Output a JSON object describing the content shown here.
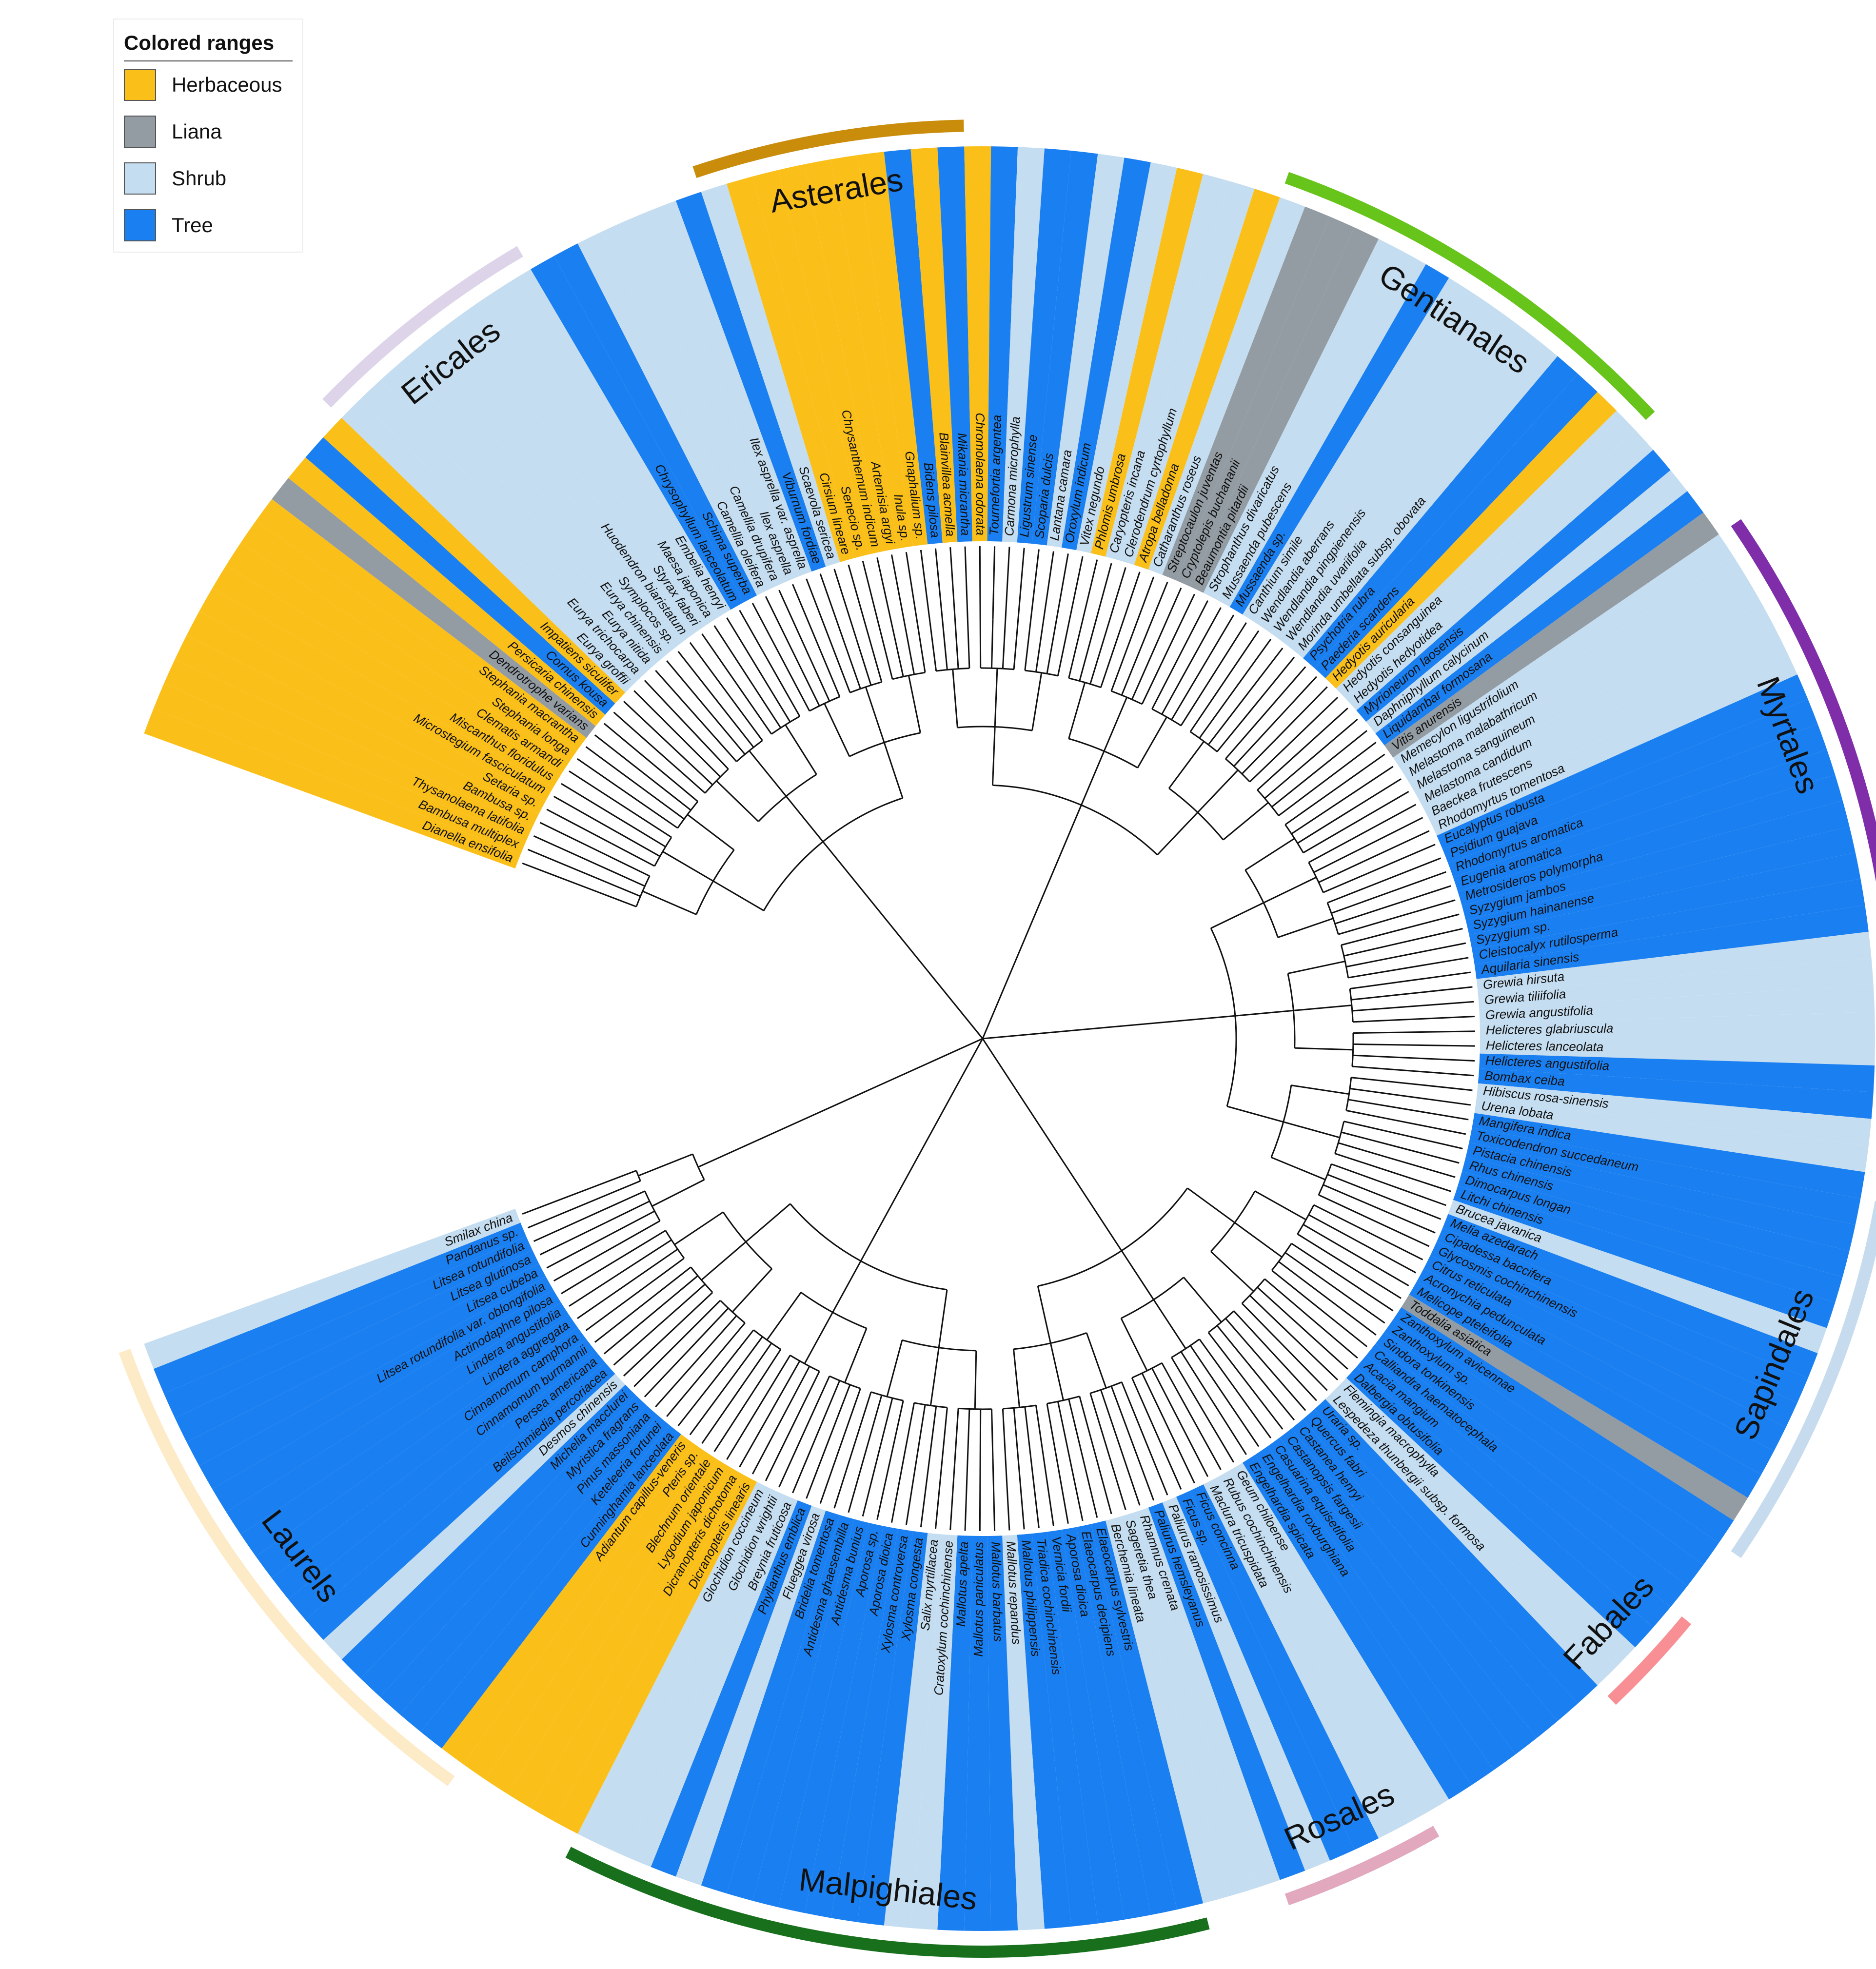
{
  "legend": {
    "title": "Colored ranges",
    "items": [
      {
        "key": "H",
        "label": "Herbaceous",
        "color": "#fbbf1a"
      },
      {
        "key": "L",
        "label": "Liana",
        "color": "#939ba3"
      },
      {
        "key": "S",
        "label": "Shrub",
        "color": "#c5ddf0"
      },
      {
        "key": "T",
        "label": "Tree",
        "color": "#1a7ff0"
      }
    ]
  },
  "clades": [
    {
      "name": "Laurels",
      "color": "#fdeac6",
      "from": "Adiantum capillus-veneris",
      "to": "Smilax china"
    },
    {
      "name": "Ericales",
      "color": "#ddd4ea",
      "from": "Eurya groffii",
      "to": "Embelia henryi"
    },
    {
      "name": "Asterales",
      "color": "#c98c0b",
      "from": "Scaevola sericea",
      "to": "Mikania micrantha"
    },
    {
      "name": "Gentianales",
      "color": "#66c41a",
      "from": "Catharanthus roseus",
      "to": "Hedyotis consanguinea"
    },
    {
      "name": "Myrtales",
      "color": "#7f2da8",
      "from": "Memecylon ligustrifolium",
      "to": "Aquilaria sinensis"
    },
    {
      "name": "Sapindales",
      "color": "#c6dcee",
      "from": "Zanthoxylum avicennae",
      "to": "Toxicodendron succedaneum"
    },
    {
      "name": "Fabales",
      "color": "#f78f94",
      "from": "Lespedeza thunbergii subsp. formosa",
      "to": "Acacia mangium"
    },
    {
      "name": "Rosales",
      "color": "#e2a8bd",
      "from": "Paliurus hemsleyanus",
      "to": "Rubus cochinchinensis"
    },
    {
      "name": "Malpighiales",
      "color": "#18701d",
      "from": "Glochidion coccineum",
      "to": "Elaeocarpus sylvestris"
    }
  ],
  "leaves": [
    {
      "name": "Dianella ensifolia",
      "type": "H"
    },
    {
      "name": "Bambusa multiplex",
      "type": "H"
    },
    {
      "name": "Thysanolaena latifolia",
      "type": "H"
    },
    {
      "name": "Bambusa sp.",
      "type": "H"
    },
    {
      "name": "Setaria sp.",
      "type": "H"
    },
    {
      "name": "Microstegium fasciculatum",
      "type": "H"
    },
    {
      "name": "Miscanthus floridulus",
      "type": "H"
    },
    {
      "name": "Clematis armandi",
      "type": "H"
    },
    {
      "name": "Stephania longa",
      "type": "H"
    },
    {
      "name": "Stephania macrantha",
      "type": "H"
    },
    {
      "name": "Dendrotrophe varians",
      "type": "L"
    },
    {
      "name": "Persicaria chinensis",
      "type": "H"
    },
    {
      "name": "Cornus kousa",
      "type": "T"
    },
    {
      "name": "Impatiens siculifer",
      "type": "H"
    },
    {
      "name": "Eurya groffii",
      "type": "S"
    },
    {
      "name": "Eurya trichocarpa",
      "type": "S"
    },
    {
      "name": "Eurya nitida",
      "type": "S"
    },
    {
      "name": "Eurya chinensis",
      "type": "S"
    },
    {
      "name": "Symplocos sp.",
      "type": "S"
    },
    {
      "name": "Huodendron biaristatum",
      "type": "S"
    },
    {
      "name": "Styrax faberi",
      "type": "S"
    },
    {
      "name": "Maesa japonica",
      "type": "S"
    },
    {
      "name": "Embelia henryi",
      "type": "S"
    },
    {
      "name": "Chrysophyllum lanceolatum",
      "type": "T"
    },
    {
      "name": "Schima superba",
      "type": "T"
    },
    {
      "name": "Camellia oleifera",
      "type": "S"
    },
    {
      "name": "Camellia drupifera",
      "type": "S"
    },
    {
      "name": "Ilex asprella",
      "type": "S"
    },
    {
      "name": "Ilex asprella var. asprella",
      "type": "S"
    },
    {
      "name": "Viburnum fordiae",
      "type": "T"
    },
    {
      "name": "Scaevola sericea",
      "type": "S"
    },
    {
      "name": "Cirsium lineare",
      "type": "H"
    },
    {
      "name": "Senecio sp.",
      "type": "H"
    },
    {
      "name": "Chrysanthemum indicum",
      "type": "H"
    },
    {
      "name": "Artemisia argyi",
      "type": "H"
    },
    {
      "name": "Inula sp.",
      "type": "H"
    },
    {
      "name": "Gnaphalium sp.",
      "type": "H"
    },
    {
      "name": "Bidens pilosa",
      "type": "T"
    },
    {
      "name": "Blainvillea acmella",
      "type": "H"
    },
    {
      "name": "Mikania micrantha",
      "type": "T"
    },
    {
      "name": "Chromolaena odorata",
      "type": "H"
    },
    {
      "name": "Tournefortia argentea",
      "type": "T"
    },
    {
      "name": "Carmona microphylla",
      "type": "S"
    },
    {
      "name": "Ligustrum sinense",
      "type": "T"
    },
    {
      "name": "Scoparia dulcis",
      "type": "T"
    },
    {
      "name": "Lantana camara",
      "type": "S"
    },
    {
      "name": "Oroxylum indicum",
      "type": "T"
    },
    {
      "name": "Vitex negundo",
      "type": "S"
    },
    {
      "name": "Phlomis umbrosa",
      "type": "H"
    },
    {
      "name": "Caryopteris incana",
      "type": "S"
    },
    {
      "name": "Clerodendrum cyrtophyllum",
      "type": "S"
    },
    {
      "name": "Atropa belladonna",
      "type": "H"
    },
    {
      "name": "Catharanthus roseus",
      "type": "S"
    },
    {
      "name": "Streptocaulon juventas",
      "type": "L"
    },
    {
      "name": "Cryptolepis buchananii",
      "type": "L"
    },
    {
      "name": "Beaumontia pitardii",
      "type": "L"
    },
    {
      "name": "Strophanthus divaricatus",
      "type": "S"
    },
    {
      "name": "Mussaenda pubescens",
      "type": "S"
    },
    {
      "name": "Mussaenda sp.",
      "type": "T"
    },
    {
      "name": "Canthium simile",
      "type": "S"
    },
    {
      "name": "Wendlandia aberrans",
      "type": "S"
    },
    {
      "name": "Wendlandia pingpienensis",
      "type": "S"
    },
    {
      "name": "Wendlandia uvariifolia",
      "type": "S"
    },
    {
      "name": "Morinda umbellata subsp. obovata",
      "type": "S"
    },
    {
      "name": "Psychotria rubra",
      "type": "T"
    },
    {
      "name": "Paederia scandens",
      "type": "T"
    },
    {
      "name": "Hedyotis auricularia",
      "type": "H"
    },
    {
      "name": "Hedyotis consanguinea",
      "type": "S"
    },
    {
      "name": "Hedyotis hedyotidea",
      "type": "S"
    },
    {
      "name": "Myrioneuron laosensis",
      "type": "T"
    },
    {
      "name": "Daphniphyllum calycinum",
      "type": "S"
    },
    {
      "name": "Liquidambar formosana",
      "type": "T"
    },
    {
      "name": "Vitis anurensis",
      "type": "L"
    },
    {
      "name": "Memecylon ligustrifolium",
      "type": "S"
    },
    {
      "name": "Melastoma malabathricum",
      "type": "S"
    },
    {
      "name": "Melastoma sanguineum",
      "type": "S"
    },
    {
      "name": "Melastoma candidum",
      "type": "S"
    },
    {
      "name": "Baeckea frutescens",
      "type": "S"
    },
    {
      "name": "Rhodomyrtus tomentosa",
      "type": "S"
    },
    {
      "name": "Eucalyptus robusta",
      "type": "T"
    },
    {
      "name": "Psidium guajava",
      "type": "T"
    },
    {
      "name": "Rhodomyrtus aromatica",
      "type": "T"
    },
    {
      "name": "Eugenia aromatica",
      "type": "T"
    },
    {
      "name": "Metrosideros polymorpha",
      "type": "T"
    },
    {
      "name": "Syzygium jambos",
      "type": "T"
    },
    {
      "name": "Syzygium hainanense",
      "type": "T"
    },
    {
      "name": "Syzygium sp.",
      "type": "T"
    },
    {
      "name": "Cleistocalyx rutilosperma",
      "type": "T"
    },
    {
      "name": "Aquilaria sinensis",
      "type": "T"
    },
    {
      "name": "Grewia hirsuta",
      "type": "S"
    },
    {
      "name": "Grewia tiliifolia",
      "type": "S"
    },
    {
      "name": "Grewia angustifolia",
      "type": "S"
    },
    {
      "name": "Helicteres glabriuscula",
      "type": "S"
    },
    {
      "name": "Helicteres lanceolata",
      "type": "S"
    },
    {
      "name": "Helicteres angustifolia",
      "type": "T"
    },
    {
      "name": "Bombax ceiba",
      "type": "T"
    },
    {
      "name": "Hibiscus rosa-sinensis",
      "type": "S"
    },
    {
      "name": "Urena lobata",
      "type": "S"
    },
    {
      "name": "Mangifera indica",
      "type": "T"
    },
    {
      "name": "Toxicodendron succedaneum",
      "type": "T"
    },
    {
      "name": "Pistacia chinensis",
      "type": "T"
    },
    {
      "name": "Rhus chinensis",
      "type": "T"
    },
    {
      "name": "Dimocarpus longan",
      "type": "T"
    },
    {
      "name": "Litchi chinensis",
      "type": "T"
    },
    {
      "name": "Brucea javanica",
      "type": "S"
    },
    {
      "name": "Melia azedarach",
      "type": "T"
    },
    {
      "name": "Cipadessa baccifera",
      "type": "T"
    },
    {
      "name": "Glycosmis cochinchinensis",
      "type": "T"
    },
    {
      "name": "Citrus reticulata",
      "type": "T"
    },
    {
      "name": "Acronychia pedunculata",
      "type": "T"
    },
    {
      "name": "Melicope pteleifolia",
      "type": "T"
    },
    {
      "name": "Toddalia asiatica",
      "type": "L"
    },
    {
      "name": "Zanthoxylum avicennae",
      "type": "T"
    },
    {
      "name": "Zanthoxylum sp.",
      "type": "T"
    },
    {
      "name": "Sindora tonkinensis",
      "type": "T"
    },
    {
      "name": "Calliandra haematocephala",
      "type": "T"
    },
    {
      "name": "Acacia mangium",
      "type": "T"
    },
    {
      "name": "Dalbergia obtusifolia",
      "type": "T"
    },
    {
      "name": "Flemingia macrophylla",
      "type": "S"
    },
    {
      "name": "Lespedeza thunbergii subsp. formosa",
      "type": "S"
    },
    {
      "name": "Uraria sp.",
      "type": "T"
    },
    {
      "name": "Quercus fabri",
      "type": "T"
    },
    {
      "name": "Castanea henryi",
      "type": "T"
    },
    {
      "name": "Castanopsis fargesii",
      "type": "T"
    },
    {
      "name": "Casuarina equisetifolia",
      "type": "T"
    },
    {
      "name": "Engelhardia roxburghiana",
      "type": "T"
    },
    {
      "name": "Engelhardia spicata",
      "type": "T"
    },
    {
      "name": "Geum chiloense",
      "type": "S"
    },
    {
      "name": "Rubus cochinchinensis",
      "type": "S"
    },
    {
      "name": "Maclura tricuspidata",
      "type": "S"
    },
    {
      "name": "Ficus concinna",
      "type": "T"
    },
    {
      "name": "Ficus sp.",
      "type": "T"
    },
    {
      "name": "Paliurus ramosissimus",
      "type": "S"
    },
    {
      "name": "Paliurus hemsleyanus",
      "type": "T"
    },
    {
      "name": "Rhamnus crenata",
      "type": "S"
    },
    {
      "name": "Sageretia thea",
      "type": "S"
    },
    {
      "name": "Berchemia lineata",
      "type": "S"
    },
    {
      "name": "Elaeocarpus sylvestris",
      "type": "T"
    },
    {
      "name": "Elaeocarpus decipiens",
      "type": "T"
    },
    {
      "name": "Aporosa dioica",
      "type": "T"
    },
    {
      "name": "Vernicia fordii",
      "type": "T"
    },
    {
      "name": "Triadica cochinchinensis",
      "type": "T"
    },
    {
      "name": "Mallotus philippensis",
      "type": "T"
    },
    {
      "name": "Mallotus repandus",
      "type": "S"
    },
    {
      "name": "Mallotus barbatus",
      "type": "T"
    },
    {
      "name": "Mallotus paniculatus",
      "type": "T"
    },
    {
      "name": "Mallotus apelta",
      "type": "T"
    },
    {
      "name": "Cratoxylum cochinchinense",
      "type": "S"
    },
    {
      "name": "Salix myrtillacea",
      "type": "S"
    },
    {
      "name": "Xylosma congesta",
      "type": "T"
    },
    {
      "name": "Xylosma controversa",
      "type": "T"
    },
    {
      "name": "Aporosa dioica",
      "type": "T"
    },
    {
      "name": "Aporosa sp.",
      "type": "T"
    },
    {
      "name": "Antidesma bunius",
      "type": "T"
    },
    {
      "name": "Antidesma ghaesembilla",
      "type": "T"
    },
    {
      "name": "Bridelia tomentosa",
      "type": "T"
    },
    {
      "name": "Flueggea virosa",
      "type": "S"
    },
    {
      "name": "Phyllanthus emblica",
      "type": "T"
    },
    {
      "name": "Breynia fruticosa",
      "type": "S"
    },
    {
      "name": "Glochidion wrightii",
      "type": "S"
    },
    {
      "name": "Glochidion coccineum",
      "type": "S"
    },
    {
      "name": "Dicranopteris linearis",
      "type": "H"
    },
    {
      "name": "Dicranopteris dichotoma",
      "type": "H"
    },
    {
      "name": "Lygodium japonicum",
      "type": "H"
    },
    {
      "name": "Blechnum orientale",
      "type": "H"
    },
    {
      "name": "Pteris sp.",
      "type": "H"
    },
    {
      "name": "Adiantum capillus-veneris",
      "type": "H"
    },
    {
      "name": "Cunninghamia lanceolata",
      "type": "T"
    },
    {
      "name": "Keteleeria fortunei",
      "type": "T"
    },
    {
      "name": "Pinus massoniana",
      "type": "T"
    },
    {
      "name": "Myristica fragrans",
      "type": "T"
    },
    {
      "name": "Michelia macclurei",
      "type": "T"
    },
    {
      "name": "Desmos chinensis",
      "type": "S"
    },
    {
      "name": "Beilschmiedia percoriacea",
      "type": "T"
    },
    {
      "name": "Persea americana",
      "type": "T"
    },
    {
      "name": "Cinnamomum burmannii",
      "type": "T"
    },
    {
      "name": "Cinnamomum camphora",
      "type": "T"
    },
    {
      "name": "Lindera aggregata",
      "type": "T"
    },
    {
      "name": "Lindera angustifolia",
      "type": "T"
    },
    {
      "name": "Actinodaphne pilosa",
      "type": "T"
    },
    {
      "name": "Litsea rotundifolia var. oblongifolia",
      "type": "T"
    },
    {
      "name": "Litsea cubeba",
      "type": "T"
    },
    {
      "name": "Litsea glutinosa",
      "type": "T"
    },
    {
      "name": "Litsea rotundifolia",
      "type": "T"
    },
    {
      "name": "Pandanus sp.",
      "type": "T"
    },
    {
      "name": "Smilax china",
      "type": "S"
    }
  ]
}
